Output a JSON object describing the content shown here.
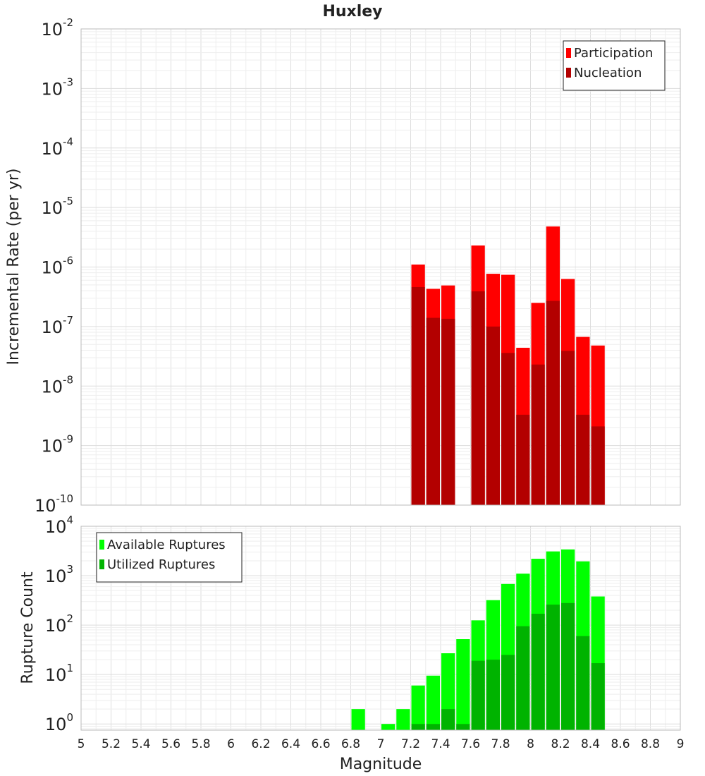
{
  "chart_data": [
    {
      "type": "bar",
      "title": "Huxley",
      "xlabel": "",
      "ylabel": "Incremental Rate (per yr)",
      "yscale": "log",
      "ylim": [
        1e-10,
        0.01
      ],
      "xlim": [
        5,
        9
      ],
      "y_ticks": [
        {
          "base": "10",
          "exp": "-10"
        },
        {
          "base": "10",
          "exp": "-9"
        },
        {
          "base": "10",
          "exp": "-8"
        },
        {
          "base": "10",
          "exp": "-7"
        },
        {
          "base": "10",
          "exp": "-6"
        },
        {
          "base": "10",
          "exp": "-5"
        },
        {
          "base": "10",
          "exp": "-4"
        },
        {
          "base": "10",
          "exp": "-3"
        },
        {
          "base": "10",
          "exp": "-2"
        }
      ],
      "legend_position": "top-right",
      "x": [
        7.25,
        7.35,
        7.45,
        7.55,
        7.65,
        7.75,
        7.85,
        7.95,
        8.05,
        8.15,
        8.25,
        8.35,
        8.45
      ],
      "series": [
        {
          "name": "Participation",
          "color": "#ff0000",
          "values": [
            1.1e-06,
            4.3e-07,
            4.9e-07,
            null,
            2.3e-06,
            7.7e-07,
            7.4e-07,
            4.4e-08,
            2.5e-07,
            4.8e-06,
            6.3e-07,
            6.7e-08,
            4.8e-08
          ]
        },
        {
          "name": "Nucleation",
          "color": "#b30000",
          "values": [
            4.6e-07,
            1.4e-07,
            1.35e-07,
            null,
            3.9e-07,
            1e-07,
            3.6e-08,
            3.3e-09,
            2.3e-08,
            2.7e-07,
            3.9e-08,
            3.3e-09,
            2.1e-09
          ]
        }
      ]
    },
    {
      "type": "bar",
      "title": "",
      "xlabel": "Magnitude",
      "ylabel": "Rupture Count",
      "yscale": "log",
      "ylim": [
        0.75,
        10000
      ],
      "xlim": [
        5,
        9
      ],
      "x_ticks": [
        "5",
        "5.2",
        "5.4",
        "5.6",
        "5.8",
        "6",
        "6.2",
        "6.4",
        "6.6",
        "6.8",
        "7",
        "7.2",
        "7.4",
        "7.6",
        "7.8",
        "8",
        "8.2",
        "8.4",
        "8.6",
        "8.8",
        "9"
      ],
      "y_ticks": [
        {
          "base": "10",
          "exp": "0"
        },
        {
          "base": "10",
          "exp": "1"
        },
        {
          "base": "10",
          "exp": "2"
        },
        {
          "base": "10",
          "exp": "3"
        },
        {
          "base": "10",
          "exp": "4"
        }
      ],
      "legend_position": "top-left",
      "x": [
        6.85,
        6.95,
        7.05,
        7.15,
        7.25,
        7.35,
        7.45,
        7.55,
        7.65,
        7.75,
        7.85,
        7.95,
        8.05,
        8.15,
        8.25,
        8.35,
        8.45
      ],
      "series": [
        {
          "name": "Available Ruptures",
          "color": "#00ff00",
          "values": [
            2,
            null,
            1,
            2,
            6,
            9.5,
            27,
            52,
            125,
            320,
            680,
            1100,
            2200,
            3100,
            3400,
            1950,
            380
          ]
        },
        {
          "name": "Utilized Ruptures",
          "color": "#00b300",
          "values": [
            null,
            null,
            null,
            null,
            1,
            1,
            2,
            1,
            19,
            20,
            25,
            95,
            170,
            260,
            280,
            60,
            17
          ]
        }
      ]
    }
  ]
}
